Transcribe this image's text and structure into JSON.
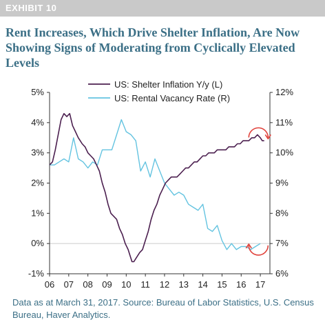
{
  "header": {
    "exhibit_label": "EXHIBIT 10",
    "title": "Rent Increases, Which Drive Shelter Inflation, Are Now Showing Signs of Moderating from Cyclically Elevated Levels"
  },
  "footnote": "Data as at March 31, 2017. Source: Bureau of Labor Statistics, U.S. Census Bureau, Haver Analytics.",
  "colors": {
    "shelter_series": "#4b1f4f",
    "vacancy_series": "#63c3e0",
    "zero_line": "#cccccc",
    "annotation_arrow": "#e0413a",
    "header_band": "#c9c9c9",
    "title_text": "#3b6f86"
  },
  "annotation_icons": [
    "clockwise-arrow-icon",
    "clockwise-arrow-icon"
  ],
  "chart_data": {
    "type": "line",
    "xlabel": "",
    "x_ticks": [
      "06",
      "07",
      "08",
      "09",
      "10",
      "11",
      "12",
      "13",
      "14",
      "15",
      "16",
      "17"
    ],
    "xlim": [
      2006.0,
      2017.5
    ],
    "y_left": {
      "ylim": [
        -1,
        5
      ],
      "ticks": [
        -1,
        0,
        1,
        2,
        3,
        4,
        5
      ],
      "tick_labels": [
        "-1%",
        "0%",
        "1%",
        "2%",
        "3%",
        "4%",
        "5%"
      ]
    },
    "y_right": {
      "ylim": [
        6,
        12
      ],
      "ticks": [
        6,
        7,
        8,
        9,
        10,
        11,
        12
      ],
      "tick_labels": [
        "6%",
        "7%",
        "8%",
        "9%",
        "10%",
        "11%",
        "12%"
      ]
    },
    "grid": false,
    "zero_line": true,
    "legend_position": "top-center",
    "series": [
      {
        "name": "US: Shelter Inflation Y/y (L)",
        "axis": "left",
        "x": [
          2006.0,
          2006.15,
          2006.3,
          2006.45,
          2006.6,
          2006.75,
          2006.9,
          2007.05,
          2007.2,
          2007.35,
          2007.5,
          2007.6,
          2007.7,
          2007.85,
          2008.0,
          2008.15,
          2008.3,
          2008.45,
          2008.6,
          2008.75,
          2008.9,
          2009.05,
          2009.2,
          2009.35,
          2009.5,
          2009.65,
          2009.8,
          2009.95,
          2010.1,
          2010.2,
          2010.3,
          2010.4,
          2010.5,
          2010.6,
          2010.7,
          2010.85,
          2011.0,
          2011.15,
          2011.3,
          2011.45,
          2011.6,
          2011.75,
          2011.9,
          2012.05,
          2012.2,
          2012.35,
          2012.5,
          2012.65,
          2012.8,
          2012.95,
          2013.1,
          2013.25,
          2013.4,
          2013.55,
          2013.7,
          2013.85,
          2014.0,
          2014.15,
          2014.3,
          2014.45,
          2014.6,
          2014.75,
          2014.9,
          2015.05,
          2015.2,
          2015.35,
          2015.5,
          2015.65,
          2015.8,
          2015.95,
          2016.1,
          2016.25,
          2016.4,
          2016.55,
          2016.7,
          2016.85,
          2017.0,
          2017.1,
          2017.2
        ],
        "values": [
          2.6,
          2.7,
          3.1,
          3.6,
          4.1,
          4.3,
          4.2,
          4.3,
          3.9,
          3.7,
          3.5,
          3.4,
          3.3,
          3.2,
          3.0,
          2.9,
          2.8,
          2.6,
          2.4,
          2.0,
          1.7,
          1.3,
          1.0,
          0.9,
          0.8,
          0.5,
          0.3,
          0.0,
          -0.2,
          -0.4,
          -0.6,
          -0.6,
          -0.5,
          -0.4,
          -0.3,
          -0.2,
          0.1,
          0.4,
          0.8,
          1.1,
          1.3,
          1.6,
          1.8,
          2.0,
          2.1,
          2.2,
          2.2,
          2.2,
          2.3,
          2.4,
          2.5,
          2.5,
          2.6,
          2.7,
          2.7,
          2.8,
          2.9,
          2.9,
          3.0,
          3.0,
          3.0,
          3.1,
          3.1,
          3.1,
          3.1,
          3.2,
          3.2,
          3.2,
          3.3,
          3.3,
          3.4,
          3.4,
          3.4,
          3.5,
          3.5,
          3.6,
          3.5,
          3.4,
          3.4
        ]
      },
      {
        "name": "US: Rental Vacancy Rate (R)",
        "axis": "right",
        "x": [
          2006.0,
          2006.25,
          2006.5,
          2006.75,
          2007.0,
          2007.25,
          2007.5,
          2007.75,
          2008.0,
          2008.25,
          2008.5,
          2008.75,
          2009.0,
          2009.25,
          2009.5,
          2009.75,
          2010.0,
          2010.25,
          2010.5,
          2010.75,
          2011.0,
          2011.25,
          2011.5,
          2011.75,
          2012.0,
          2012.25,
          2012.5,
          2012.75,
          2013.0,
          2013.25,
          2013.5,
          2013.75,
          2014.0,
          2014.25,
          2014.5,
          2014.75,
          2015.0,
          2015.25,
          2015.5,
          2015.75,
          2016.0,
          2016.25,
          2016.5,
          2016.75,
          2017.0
        ],
        "values": [
          9.6,
          9.6,
          9.7,
          9.8,
          9.7,
          10.5,
          9.8,
          9.7,
          9.5,
          9.7,
          9.6,
          10.1,
          10.1,
          10.1,
          10.6,
          11.1,
          10.7,
          10.6,
          10.4,
          9.4,
          9.7,
          9.2,
          9.8,
          9.4,
          9.0,
          8.8,
          8.6,
          8.7,
          8.6,
          8.3,
          8.2,
          8.1,
          8.3,
          7.5,
          7.4,
          7.6,
          7.1,
          6.8,
          7.0,
          6.8,
          6.9,
          6.9,
          6.8,
          6.9,
          7.0
        ]
      }
    ],
    "annotations": [
      {
        "type": "arrow",
        "shape": "clockwise-arc",
        "near_x": 2016.9,
        "near_axis": "left",
        "near_value": 3.6
      },
      {
        "type": "arrow",
        "shape": "clockwise-arc",
        "near_x": 2016.9,
        "near_axis": "right",
        "near_value": 6.8
      }
    ]
  }
}
